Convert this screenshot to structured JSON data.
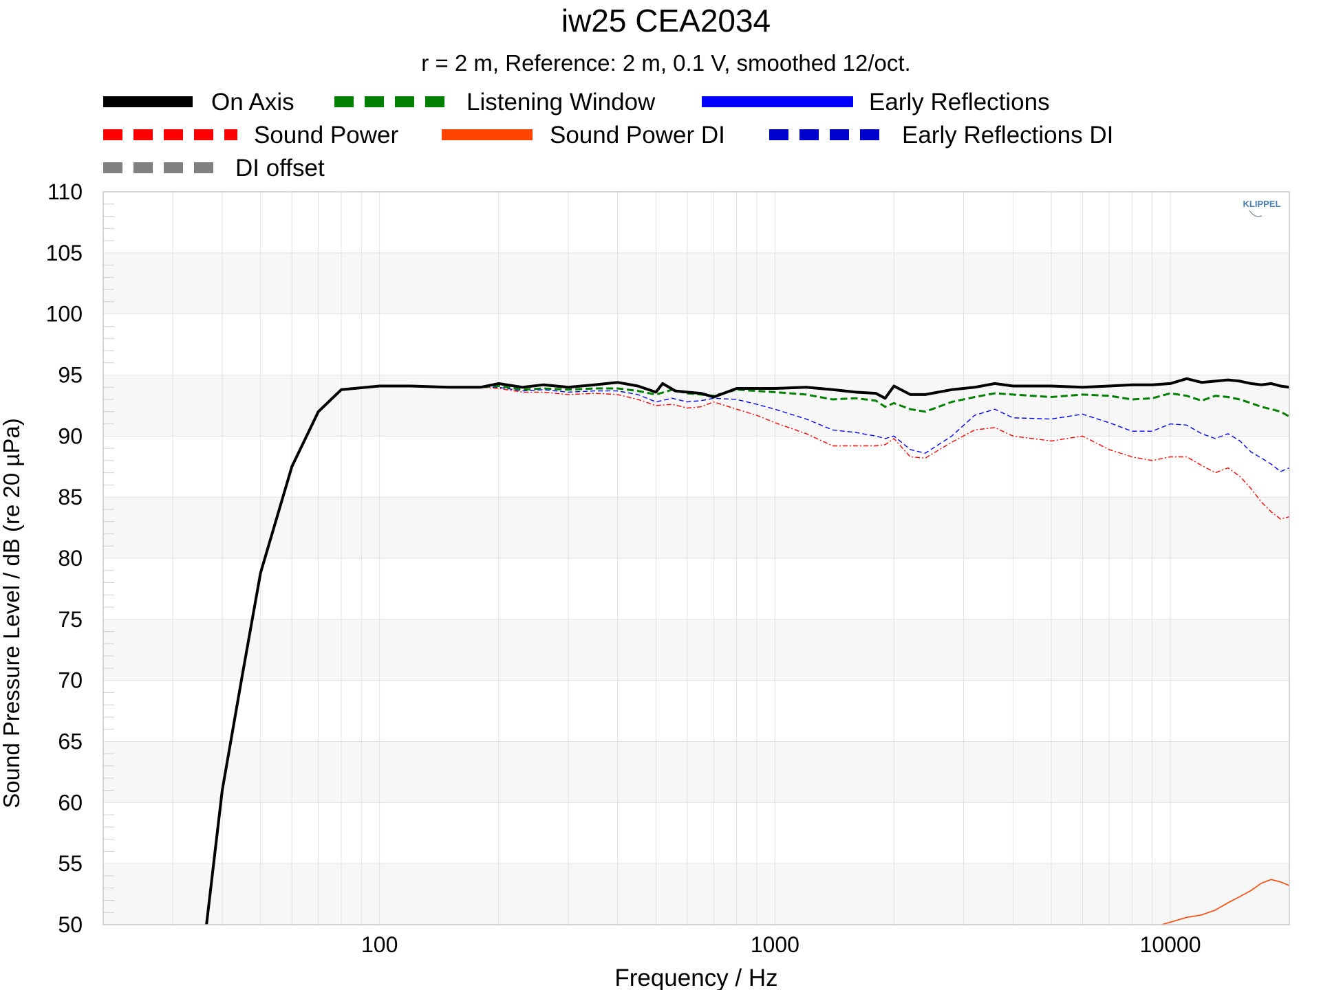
{
  "chart_data": {
    "type": "line",
    "title": "iw25 CEA2034",
    "subtitle": "r = 2 m,  Reference: 2 m, 0.1 V, smoothed 12/oct.",
    "xlabel": "Frequency / Hz",
    "ylabel": "Sound Pressure Level / dB (re 20 µPa)",
    "x_scale": "log",
    "xlim": [
      20,
      20000
    ],
    "ylim": [
      50,
      110
    ],
    "x_ticks": [
      {
        "value": 100,
        "label": "100"
      },
      {
        "value": 1000,
        "label": "1000"
      },
      {
        "value": 10000,
        "label": "10000"
      }
    ],
    "y_ticks": [
      {
        "value": 50,
        "label": "50"
      },
      {
        "value": 55,
        "label": "55"
      },
      {
        "value": 60,
        "label": "60"
      },
      {
        "value": 65,
        "label": "65"
      },
      {
        "value": 70,
        "label": "70"
      },
      {
        "value": 75,
        "label": "75"
      },
      {
        "value": 80,
        "label": "80"
      },
      {
        "value": 85,
        "label": "85"
      },
      {
        "value": 90,
        "label": "90"
      },
      {
        "value": 95,
        "label": "95"
      },
      {
        "value": 100,
        "label": "100"
      },
      {
        "value": 105,
        "label": "105"
      },
      {
        "value": 110,
        "label": "110"
      }
    ],
    "grid": true,
    "watermark": "KLIPPEL",
    "legend": [
      {
        "name": "On Axis",
        "color": "#000000",
        "style": "solid"
      },
      {
        "name": "Listening Window",
        "color": "#008000",
        "style": "dashed"
      },
      {
        "name": "Early Reflections",
        "color": "#0000ff",
        "style": "solid"
      },
      {
        "name": "Sound Power",
        "color": "#ff0000",
        "style": "dashed"
      },
      {
        "name": "Sound Power DI",
        "color": "#ff4500",
        "style": "solid"
      },
      {
        "name": "Early Reflections DI",
        "color": "#0000cd",
        "style": "dashed"
      },
      {
        "name": "DI offset",
        "color": "#808080",
        "style": "dashed"
      }
    ],
    "series": [
      {
        "name": "On Axis",
        "color": "#000000",
        "x": [
          36.5,
          40,
          45,
          50,
          60,
          70,
          80,
          100,
          120,
          150,
          180,
          200,
          230,
          260,
          300,
          350,
          400,
          450,
          500,
          520,
          560,
          600,
          650,
          700,
          800,
          900,
          1000,
          1200,
          1400,
          1600,
          1800,
          1900,
          2000,
          2200,
          2400,
          2800,
          3200,
          3600,
          4000,
          5000,
          6000,
          7000,
          8000,
          9000,
          10000,
          11000,
          12000,
          13000,
          14000,
          15000,
          16000,
          17000,
          18000,
          19000,
          20000
        ],
        "y": [
          50,
          61,
          70.5,
          78.8,
          87.5,
          92,
          93.8,
          94.1,
          94.1,
          94,
          94,
          94.3,
          94,
          94.2,
          94,
          94.2,
          94.4,
          94.1,
          93.6,
          94.3,
          93.7,
          93.6,
          93.5,
          93.2,
          93.9,
          93.9,
          93.9,
          94,
          93.8,
          93.6,
          93.5,
          93.1,
          94.1,
          93.4,
          93.4,
          93.8,
          94,
          94.3,
          94.1,
          94.1,
          94,
          94.1,
          94.2,
          94.2,
          94.3,
          94.7,
          94.4,
          94.5,
          94.6,
          94.5,
          94.3,
          94.2,
          94.3,
          94.1,
          94
        ]
      },
      {
        "name": "Listening Window",
        "color": "#008000",
        "x": [
          36.5,
          40,
          45,
          50,
          60,
          70,
          80,
          100,
          120,
          150,
          180,
          200,
          230,
          260,
          300,
          350,
          400,
          450,
          500,
          550,
          600,
          650,
          700,
          800,
          900,
          1000,
          1200,
          1400,
          1600,
          1800,
          1900,
          2000,
          2200,
          2400,
          2800,
          3200,
          3600,
          4000,
          5000,
          6000,
          7000,
          8000,
          9000,
          10000,
          11000,
          12000,
          13000,
          14000,
          15000,
          16000,
          17000,
          18000,
          19000,
          20000
        ],
        "y": [
          50,
          61,
          70.5,
          78.8,
          87.5,
          92,
          93.8,
          94.1,
          94.1,
          94,
          94,
          94.1,
          93.8,
          93.9,
          93.8,
          93.9,
          93.9,
          93.7,
          93.4,
          93.8,
          93.5,
          93.4,
          93.3,
          93.8,
          93.7,
          93.6,
          93.4,
          93,
          93.1,
          92.9,
          92.4,
          92.7,
          92.2,
          92,
          92.8,
          93.2,
          93.5,
          93.4,
          93.2,
          93.4,
          93.3,
          93,
          93.1,
          93.5,
          93.3,
          92.9,
          93.3,
          93.2,
          93,
          92.7,
          92.4,
          92.2,
          92,
          91.6
        ]
      },
      {
        "name": "Early Reflections",
        "color": "#0000ff",
        "x": [
          36.5,
          40,
          45,
          50,
          60,
          70,
          80,
          100,
          120,
          150,
          180,
          200,
          230,
          260,
          300,
          350,
          400,
          450,
          500,
          550,
          600,
          650,
          700,
          800,
          900,
          1000,
          1200,
          1400,
          1600,
          1800,
          1900,
          2000,
          2200,
          2400,
          2800,
          3200,
          3600,
          4000,
          5000,
          6000,
          7000,
          8000,
          9000,
          10000,
          11000,
          12000,
          13000,
          14000,
          15000,
          16000,
          17000,
          18000,
          19000,
          20000
        ],
        "y": [
          50,
          61,
          70.5,
          78.8,
          87.5,
          92,
          93.8,
          94.1,
          94.1,
          94,
          94,
          94,
          93.7,
          93.8,
          93.6,
          93.7,
          93.7,
          93.4,
          92.8,
          93.1,
          92.8,
          92.9,
          93.1,
          93,
          92.6,
          92.2,
          91.4,
          90.5,
          90.3,
          90,
          89.8,
          90,
          88.9,
          88.6,
          90,
          91.7,
          92.2,
          91.5,
          91.4,
          91.8,
          91.1,
          90.4,
          90.4,
          91,
          90.9,
          90.2,
          89.8,
          90.2,
          89.6,
          88.7,
          88.2,
          87.7,
          87.1,
          87.4
        ]
      },
      {
        "name": "Sound Power",
        "color": "#ff0000",
        "x": [
          36.5,
          40,
          45,
          50,
          60,
          70,
          80,
          100,
          120,
          150,
          180,
          200,
          230,
          260,
          300,
          350,
          400,
          450,
          500,
          550,
          600,
          650,
          700,
          800,
          900,
          1000,
          1200,
          1400,
          1600,
          1800,
          1900,
          2000,
          2200,
          2400,
          2800,
          3200,
          3600,
          4000,
          5000,
          6000,
          7000,
          8000,
          9000,
          10000,
          11000,
          12000,
          13000,
          14000,
          15000,
          16000,
          17000,
          18000,
          19000,
          20000
        ],
        "y": [
          50,
          61,
          70.5,
          78.8,
          87.5,
          92,
          93.8,
          94.1,
          94.1,
          94,
          94,
          93.9,
          93.6,
          93.6,
          93.4,
          93.5,
          93.4,
          93,
          92.5,
          92.6,
          92.3,
          92.4,
          92.8,
          92.2,
          91.7,
          91.1,
          90.2,
          89.2,
          89.2,
          89.2,
          89.3,
          89.8,
          88.3,
          88.2,
          89.5,
          90.5,
          90.7,
          90,
          89.6,
          90,
          88.9,
          88.3,
          88,
          88.3,
          88.3,
          87.6,
          87,
          87.4,
          86.7,
          85.7,
          84.6,
          83.8,
          83.2,
          83.4
        ]
      },
      {
        "name": "Sound Power DI",
        "color": "#ff4500",
        "x": [
          9500,
          10000,
          11000,
          12000,
          13000,
          14000,
          15000,
          16000,
          17000,
          18000,
          19000,
          20000
        ],
        "y": [
          50,
          50.2,
          50.6,
          50.8,
          51.2,
          51.8,
          52.3,
          52.8,
          53.4,
          53.7,
          53.5,
          53.2
        ]
      }
    ]
  }
}
